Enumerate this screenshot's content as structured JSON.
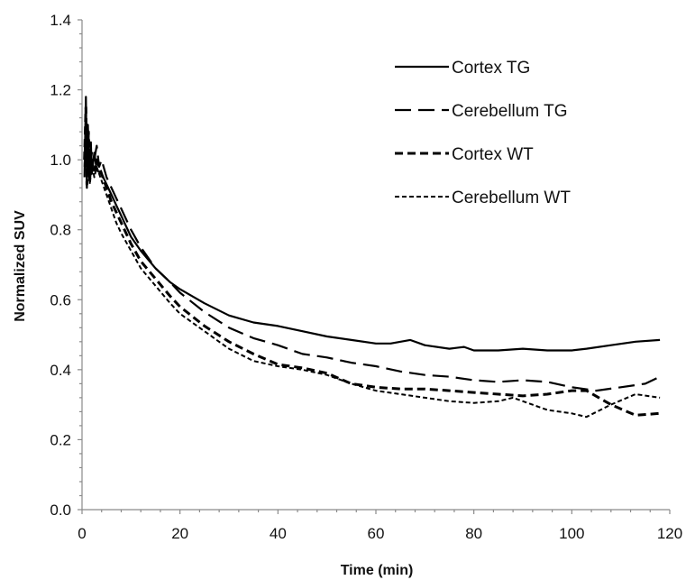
{
  "chart_data": {
    "type": "line",
    "title": "",
    "xlabel": "Time (min)",
    "ylabel": "Normalized SUV",
    "xlim": [
      0,
      120
    ],
    "ylim": [
      0,
      1.4
    ],
    "x_ticks": [
      "0",
      "20",
      "40",
      "60",
      "80",
      "100",
      "120"
    ],
    "y_ticks": [
      "0.0",
      "0.2",
      "0.4",
      "0.6",
      "0.8",
      "1.0",
      "1.2",
      "1.4"
    ],
    "x_tick_values": [
      0,
      20,
      40,
      60,
      80,
      100,
      120
    ],
    "y_tick_values": [
      0,
      0.2,
      0.4,
      0.6,
      0.8,
      1.0,
      1.2,
      1.4
    ],
    "grid": false,
    "legend_position": "top-right",
    "series": [
      {
        "name": "Cortex TG",
        "style": "solid",
        "x": [
          0.5,
          0.8,
          1.0,
          1.2,
          1.5,
          1.8,
          2.0,
          2.5,
          3,
          4,
          5,
          6,
          7,
          8,
          10,
          12,
          15,
          18,
          20,
          25,
          30,
          35,
          40,
          45,
          50,
          55,
          60,
          63,
          67,
          70,
          75,
          78,
          80,
          85,
          90,
          95,
          100,
          103,
          108,
          113,
          118
        ],
        "y": [
          0.95,
          1.18,
          0.92,
          1.1,
          0.94,
          1.05,
          0.96,
          1.02,
          0.97,
          0.96,
          0.93,
          0.9,
          0.87,
          0.84,
          0.78,
          0.74,
          0.69,
          0.65,
          0.63,
          0.59,
          0.555,
          0.535,
          0.525,
          0.51,
          0.495,
          0.485,
          0.475,
          0.475,
          0.485,
          0.47,
          0.46,
          0.465,
          0.455,
          0.455,
          0.46,
          0.455,
          0.455,
          0.46,
          0.47,
          0.48,
          0.485
        ]
      },
      {
        "name": "Cerebellum TG",
        "style": "long-dash",
        "x": [
          0.5,
          0.8,
          1.0,
          1.3,
          1.6,
          2.0,
          2.5,
          3,
          3.5,
          4,
          5,
          6,
          7,
          8,
          10,
          12,
          15,
          18,
          20,
          25,
          30,
          35,
          40,
          45,
          50,
          55,
          60,
          65,
          70,
          75,
          80,
          85,
          90,
          95,
          100,
          105,
          110,
          115,
          118
        ],
        "y": [
          1.0,
          1.12,
          0.95,
          1.08,
          0.97,
          1.02,
          1.0,
          1.04,
          0.98,
          1.0,
          0.95,
          0.92,
          0.89,
          0.86,
          0.8,
          0.75,
          0.69,
          0.65,
          0.62,
          0.565,
          0.52,
          0.49,
          0.47,
          0.445,
          0.435,
          0.42,
          0.41,
          0.395,
          0.385,
          0.38,
          0.37,
          0.365,
          0.37,
          0.365,
          0.35,
          0.34,
          0.35,
          0.36,
          0.38
        ]
      },
      {
        "name": "Cortex WT",
        "style": "dash",
        "x": [
          0.5,
          0.8,
          1.0,
          1.3,
          1.6,
          2.0,
          2.5,
          3,
          4,
          5,
          6,
          7,
          8,
          10,
          12,
          15,
          18,
          20,
          25,
          30,
          35,
          40,
          45,
          50,
          55,
          60,
          65,
          70,
          75,
          80,
          85,
          90,
          95,
          100,
          103,
          108,
          113,
          118
        ],
        "y": [
          1.0,
          1.15,
          0.93,
          1.08,
          0.95,
          1.0,
          0.97,
          1.0,
          0.96,
          0.92,
          0.88,
          0.85,
          0.82,
          0.76,
          0.71,
          0.66,
          0.61,
          0.58,
          0.525,
          0.48,
          0.445,
          0.415,
          0.405,
          0.39,
          0.36,
          0.35,
          0.345,
          0.345,
          0.34,
          0.335,
          0.33,
          0.325,
          0.33,
          0.34,
          0.34,
          0.3,
          0.27,
          0.275
        ]
      },
      {
        "name": "Cerebellum WT",
        "style": "short-dash",
        "x": [
          0.5,
          0.8,
          1.0,
          1.3,
          1.6,
          2.0,
          2.5,
          3,
          4,
          5,
          6,
          7,
          8,
          10,
          12,
          15,
          18,
          20,
          25,
          30,
          35,
          40,
          45,
          50,
          55,
          60,
          65,
          70,
          75,
          80,
          85,
          88,
          90,
          95,
          100,
          103,
          108,
          113,
          118
        ],
        "y": [
          0.98,
          1.1,
          0.92,
          1.05,
          0.93,
          0.99,
          0.95,
          0.98,
          0.94,
          0.9,
          0.86,
          0.82,
          0.79,
          0.74,
          0.69,
          0.64,
          0.59,
          0.56,
          0.51,
          0.46,
          0.425,
          0.41,
          0.4,
          0.385,
          0.36,
          0.34,
          0.33,
          0.32,
          0.31,
          0.305,
          0.31,
          0.32,
          0.31,
          0.285,
          0.275,
          0.265,
          0.3,
          0.33,
          0.32
        ]
      }
    ]
  }
}
